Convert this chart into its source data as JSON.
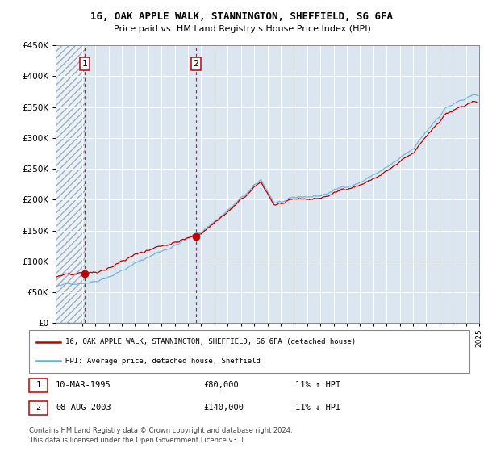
{
  "title": "16, OAK APPLE WALK, STANNINGTON, SHEFFIELD, S6 6FA",
  "subtitle": "Price paid vs. HM Land Registry's House Price Index (HPI)",
  "ylim": [
    0,
    450000
  ],
  "yticks": [
    0,
    50000,
    100000,
    150000,
    200000,
    250000,
    300000,
    350000,
    400000,
    450000
  ],
  "sale1_date": 1995.19,
  "sale1_price": 80000,
  "sale2_date": 2003.6,
  "sale2_price": 140000,
  "hpi_color": "#6baed6",
  "price_color": "#c00000",
  "bg_color": "#dce6f1",
  "legend_text1": "16, OAK APPLE WALK, STANNINGTON, SHEFFIELD, S6 6FA (detached house)",
  "legend_text2": "HPI: Average price, detached house, Sheffield",
  "table_row1": [
    "1",
    "10-MAR-1995",
    "£80,000",
    "11% ↑ HPI"
  ],
  "table_row2": [
    "2",
    "08-AUG-2003",
    "£140,000",
    "11% ↓ HPI"
  ],
  "footer": "Contains HM Land Registry data © Crown copyright and database right 2024.\nThis data is licensed under the Open Government Licence v3.0.",
  "xlim_start": 1993,
  "xlim_end": 2025
}
